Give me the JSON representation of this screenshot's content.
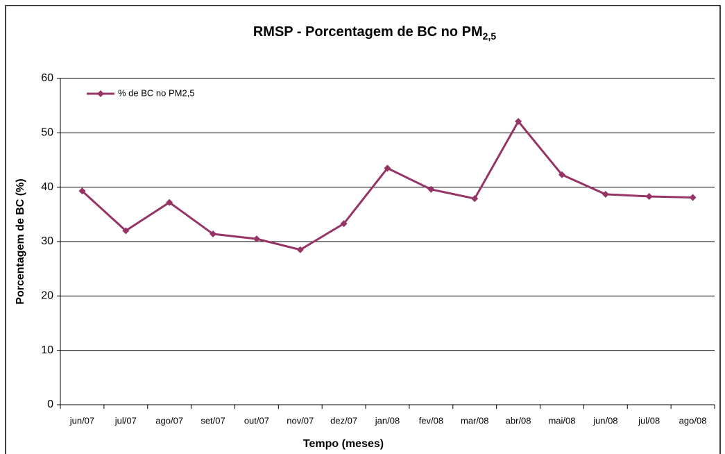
{
  "chart_data": {
    "type": "line",
    "title": "RMSP - Porcentagem de BC no PM",
    "title_subscript": "2,5",
    "x_label": "Tempo (meses)",
    "y_label": "Porcentagem de BC (%)",
    "categories": [
      "jun/07",
      "jul/07",
      "ago/07",
      "set/07",
      "out/07",
      "nov/07",
      "dez/07",
      "jan/08",
      "fev/08",
      "mar/08",
      "abr/08",
      "mai/08",
      "jun/08",
      "jul/08",
      "ago/08"
    ],
    "series": [
      {
        "name": "% de BC no PM2,5",
        "color": "#953465",
        "values": [
          39.3,
          32.0,
          37.2,
          31.4,
          30.5,
          28.5,
          33.3,
          43.5,
          39.6,
          37.9,
          52.1,
          42.3,
          38.7,
          38.3,
          38.1
        ]
      }
    ],
    "ylim": [
      0,
      60
    ],
    "yticks": [
      0,
      10,
      20,
      30,
      40,
      50,
      60
    ],
    "grid": true,
    "legend": "upper left"
  }
}
